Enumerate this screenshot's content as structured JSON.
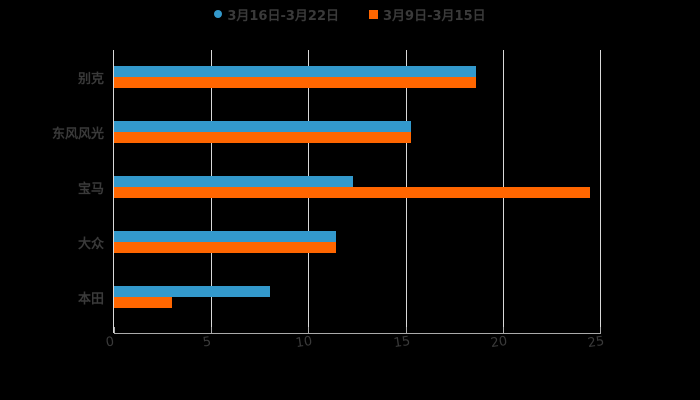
{
  "chart_data": {
    "type": "bar",
    "orientation": "horizontal",
    "title": "",
    "xlabel": "",
    "ylabel": "",
    "categories": [
      "别克",
      "东风风光",
      "宝马",
      "大众",
      "本田"
    ],
    "series": [
      {
        "name": "3月16日-3月22日",
        "color": "#3399cc",
        "values": [
          18.6,
          15.3,
          12.3,
          11.4,
          8.0
        ]
      },
      {
        "name": "3月9日-3月15日",
        "color": "#ff6600",
        "values": [
          18.6,
          15.3,
          24.5,
          11.4,
          3.0
        ]
      }
    ],
    "xlim": [
      0,
      25
    ],
    "xticks": [
      "0",
      "5",
      "10",
      "15",
      "20",
      "25"
    ],
    "grid": true,
    "legend_position": "top"
  },
  "legend": {
    "series1": "3月16日-3月22日",
    "series2": "3月9日-3月15日"
  },
  "colors": {
    "series1": "#3399cc",
    "series2": "#ff6600",
    "background": "#000000",
    "text": "#3a3a3a",
    "grid": "#d9d9d9"
  }
}
